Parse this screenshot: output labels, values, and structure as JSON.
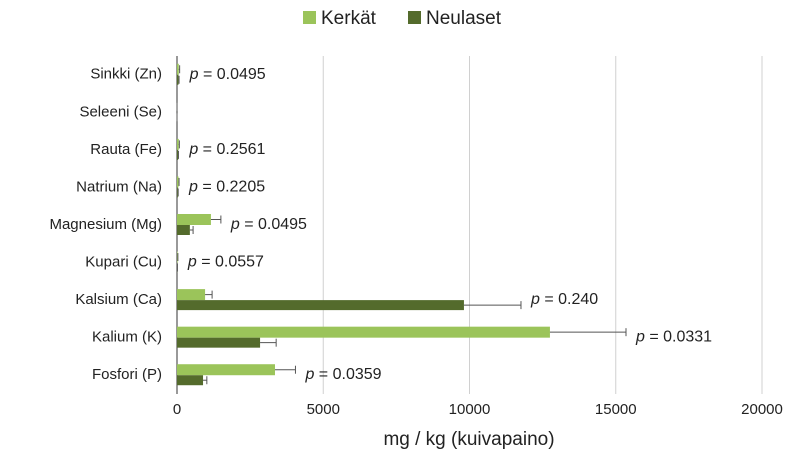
{
  "chart_data": {
    "type": "hbar",
    "xlabel": "mg / kg (kuivapaino)",
    "categories": [
      "Sinkki (Zn)",
      "Seleeni (Se)",
      "Rauta (Fe)",
      "Natrium (Na)",
      "Magnesium (Mg)",
      "Kupari (Cu)",
      "Kalsium (Ca)",
      "Kalium (K)",
      "Fosfori (P)"
    ],
    "series": [
      {
        "name": "Kerkät",
        "color": "#9bc45a",
        "values": [
          60,
          0.5,
          60,
          50,
          1160,
          20,
          960,
          12750,
          3350
        ],
        "errors": [
          30,
          0.2,
          20,
          20,
          340,
          10,
          240,
          2600,
          700
        ]
      },
      {
        "name": "Neulaset",
        "color": "#546b2c",
        "values": [
          50,
          0.3,
          40,
          30,
          440,
          10,
          9810,
          2840,
          890
        ],
        "errors": [
          20,
          0.1,
          10,
          10,
          110,
          5,
          1950,
          550,
          130
        ]
      }
    ],
    "annotations": [
      "p = 0.0495",
      null,
      "p = 0.2561",
      "p = 0.2205",
      "p = 0.0495",
      "p = 0.0557",
      "p = 0.240",
      "p = 0.0331",
      "p = 0.0359"
    ],
    "xlim": [
      0,
      20000
    ],
    "xticks": [
      0,
      5000,
      10000,
      15000,
      20000
    ],
    "grid": true,
    "legend": "top"
  }
}
